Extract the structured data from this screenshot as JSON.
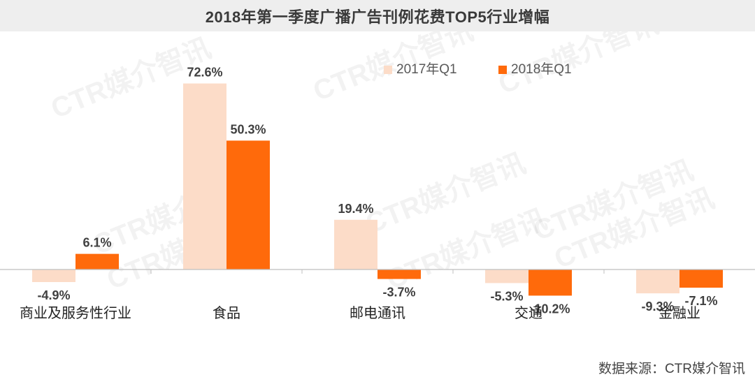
{
  "header": {
    "title": "2018年第一季度广播广告刊例花费TOP5行业增幅"
  },
  "watermark": "CTR媒介智讯",
  "source": "数据来源：CTR媒介智讯",
  "chart_data": {
    "type": "bar",
    "title": "2018年第一季度广播广告刊例花费TOP5行业增幅",
    "xlabel": "",
    "ylabel": "",
    "categories": [
      "商业及服务性行业",
      "食品",
      "邮电通讯",
      "交通",
      "金融业"
    ],
    "series": [
      {
        "name": "2017年Q1",
        "color": "#fcdcc8",
        "values": [
          -4.9,
          72.6,
          19.4,
          -5.3,
          -9.3
        ],
        "labels": [
          "-4.9%",
          "72.6%",
          "19.4%",
          "-5.3%",
          "-9.3%"
        ]
      },
      {
        "name": "2018年Q1",
        "color": "#ff6a0b",
        "values": [
          6.1,
          50.3,
          -3.7,
          -10.2,
          -7.1
        ],
        "labels": [
          "6.1%",
          "50.3%",
          "-3.7%",
          "-10.2%",
          "-7.1%"
        ]
      }
    ],
    "ylim": [
      -15,
      75
    ],
    "grid": false,
    "legend": "top-right"
  }
}
